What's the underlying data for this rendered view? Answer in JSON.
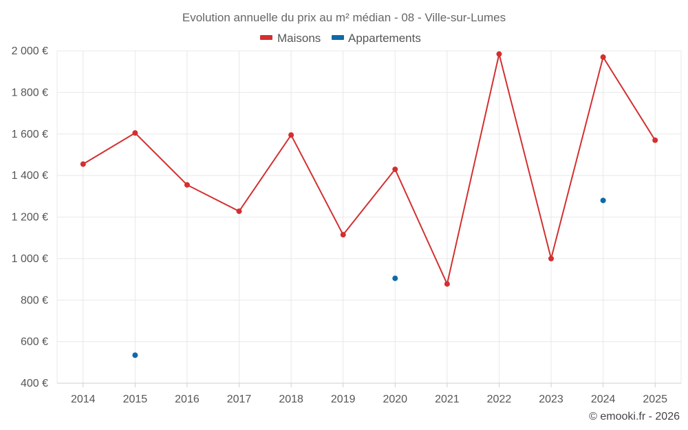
{
  "chart_data": {
    "type": "line",
    "title": "Evolution annuelle du prix au m² médian - 08 - Ville-sur-Lumes",
    "categories": [
      "2014",
      "2015",
      "2016",
      "2017",
      "2018",
      "2019",
      "2020",
      "2021",
      "2022",
      "2023",
      "2024",
      "2025"
    ],
    "ylim": [
      400,
      2000
    ],
    "yticks": [
      400,
      600,
      800,
      1000,
      1200,
      1400,
      1600,
      1800,
      2000
    ],
    "ytick_labels": [
      "400 €",
      "600 €",
      "800 €",
      "1 000 €",
      "1 200 €",
      "1 400 €",
      "1 600 €",
      "1 800 €",
      "2 000 €"
    ],
    "grid": true,
    "legend_position": "top-center",
    "series": [
      {
        "name": "Maisons",
        "color": "#d32f2f",
        "line": true,
        "values": [
          1455,
          1605,
          1355,
          1228,
          1595,
          1115,
          1430,
          878,
          1985,
          1000,
          1970,
          1570
        ]
      },
      {
        "name": "Appartements",
        "color": "#0d6aa8",
        "line": false,
        "values": [
          null,
          535,
          null,
          null,
          null,
          null,
          905,
          null,
          null,
          null,
          1280,
          null
        ]
      }
    ]
  },
  "credit": "© emooki.fr - 2026"
}
